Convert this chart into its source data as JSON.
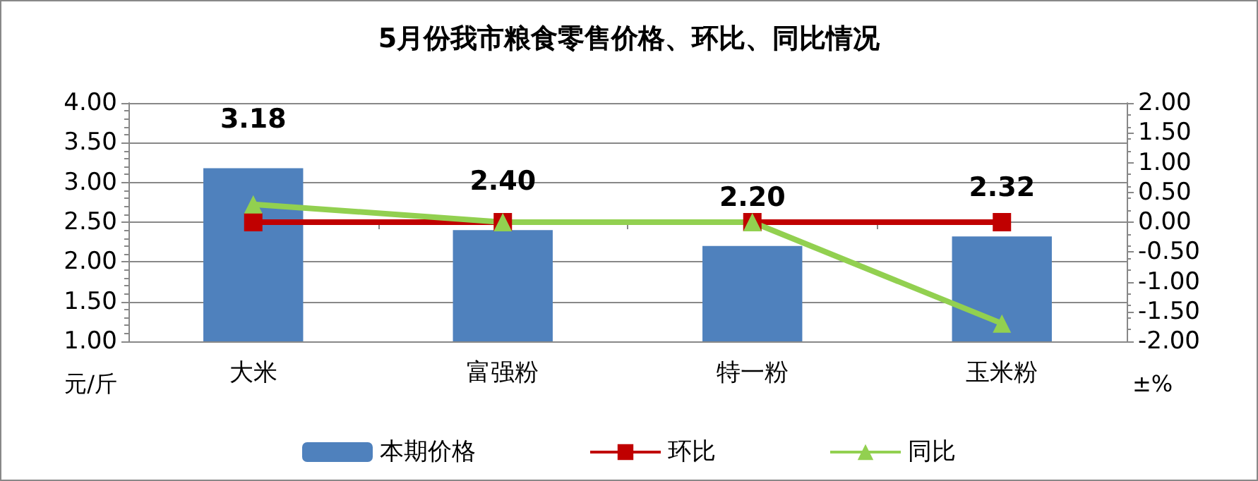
{
  "chart_data": {
    "type": "bar",
    "title": "5月份我市粮食零售价格、环比、同比情况",
    "categories": [
      "大米",
      "富强粉",
      "特一粉",
      "玉米粉"
    ],
    "series": [
      {
        "name": "本期价格",
        "color": "#4f81bd",
        "values": [
          3.18,
          2.4,
          2.2,
          2.32
        ],
        "value_labels": [
          "3.18",
          "2.40",
          "2.20",
          "2.32"
        ]
      },
      {
        "name": "环比",
        "type": "line",
        "axis": "y2",
        "color": "#c00000",
        "marker": "square",
        "values": [
          0,
          0,
          0,
          0
        ]
      },
      {
        "name": "同比",
        "type": "line",
        "axis": "y2",
        "color": "#92d050",
        "marker": "triangle",
        "values": [
          0.3,
          0,
          0,
          -1.7
        ]
      }
    ],
    "ylabel": "元/斤",
    "y2label": "±%",
    "ylim": [
      1,
      4
    ],
    "yticks": [
      {
        "value": 1,
        "label": "1.00"
      },
      {
        "value": 1.5,
        "label": "1.50"
      },
      {
        "value": 2,
        "label": "2.00"
      },
      {
        "value": 2.5,
        "label": "2.50"
      },
      {
        "value": 3,
        "label": "3.00"
      },
      {
        "value": 3.5,
        "label": "3.50"
      },
      {
        "value": 4,
        "label": "4.00"
      }
    ],
    "y2lim": [
      -2,
      2
    ],
    "y2ticks": [
      {
        "value": -2,
        "label": "-2.00"
      },
      {
        "value": -1.5,
        "label": "-1.50"
      },
      {
        "value": -1,
        "label": "-1.00"
      },
      {
        "value": -0.5,
        "label": "-0.50"
      },
      {
        "value": 0,
        "label": "0.00"
      },
      {
        "value": 0.5,
        "label": "0.50"
      },
      {
        "value": 1,
        "label": "1.00"
      },
      {
        "value": 1.5,
        "label": "1.50"
      },
      {
        "value": 2,
        "label": "2.00"
      }
    ],
    "grid": "y",
    "legend": "bottom"
  }
}
